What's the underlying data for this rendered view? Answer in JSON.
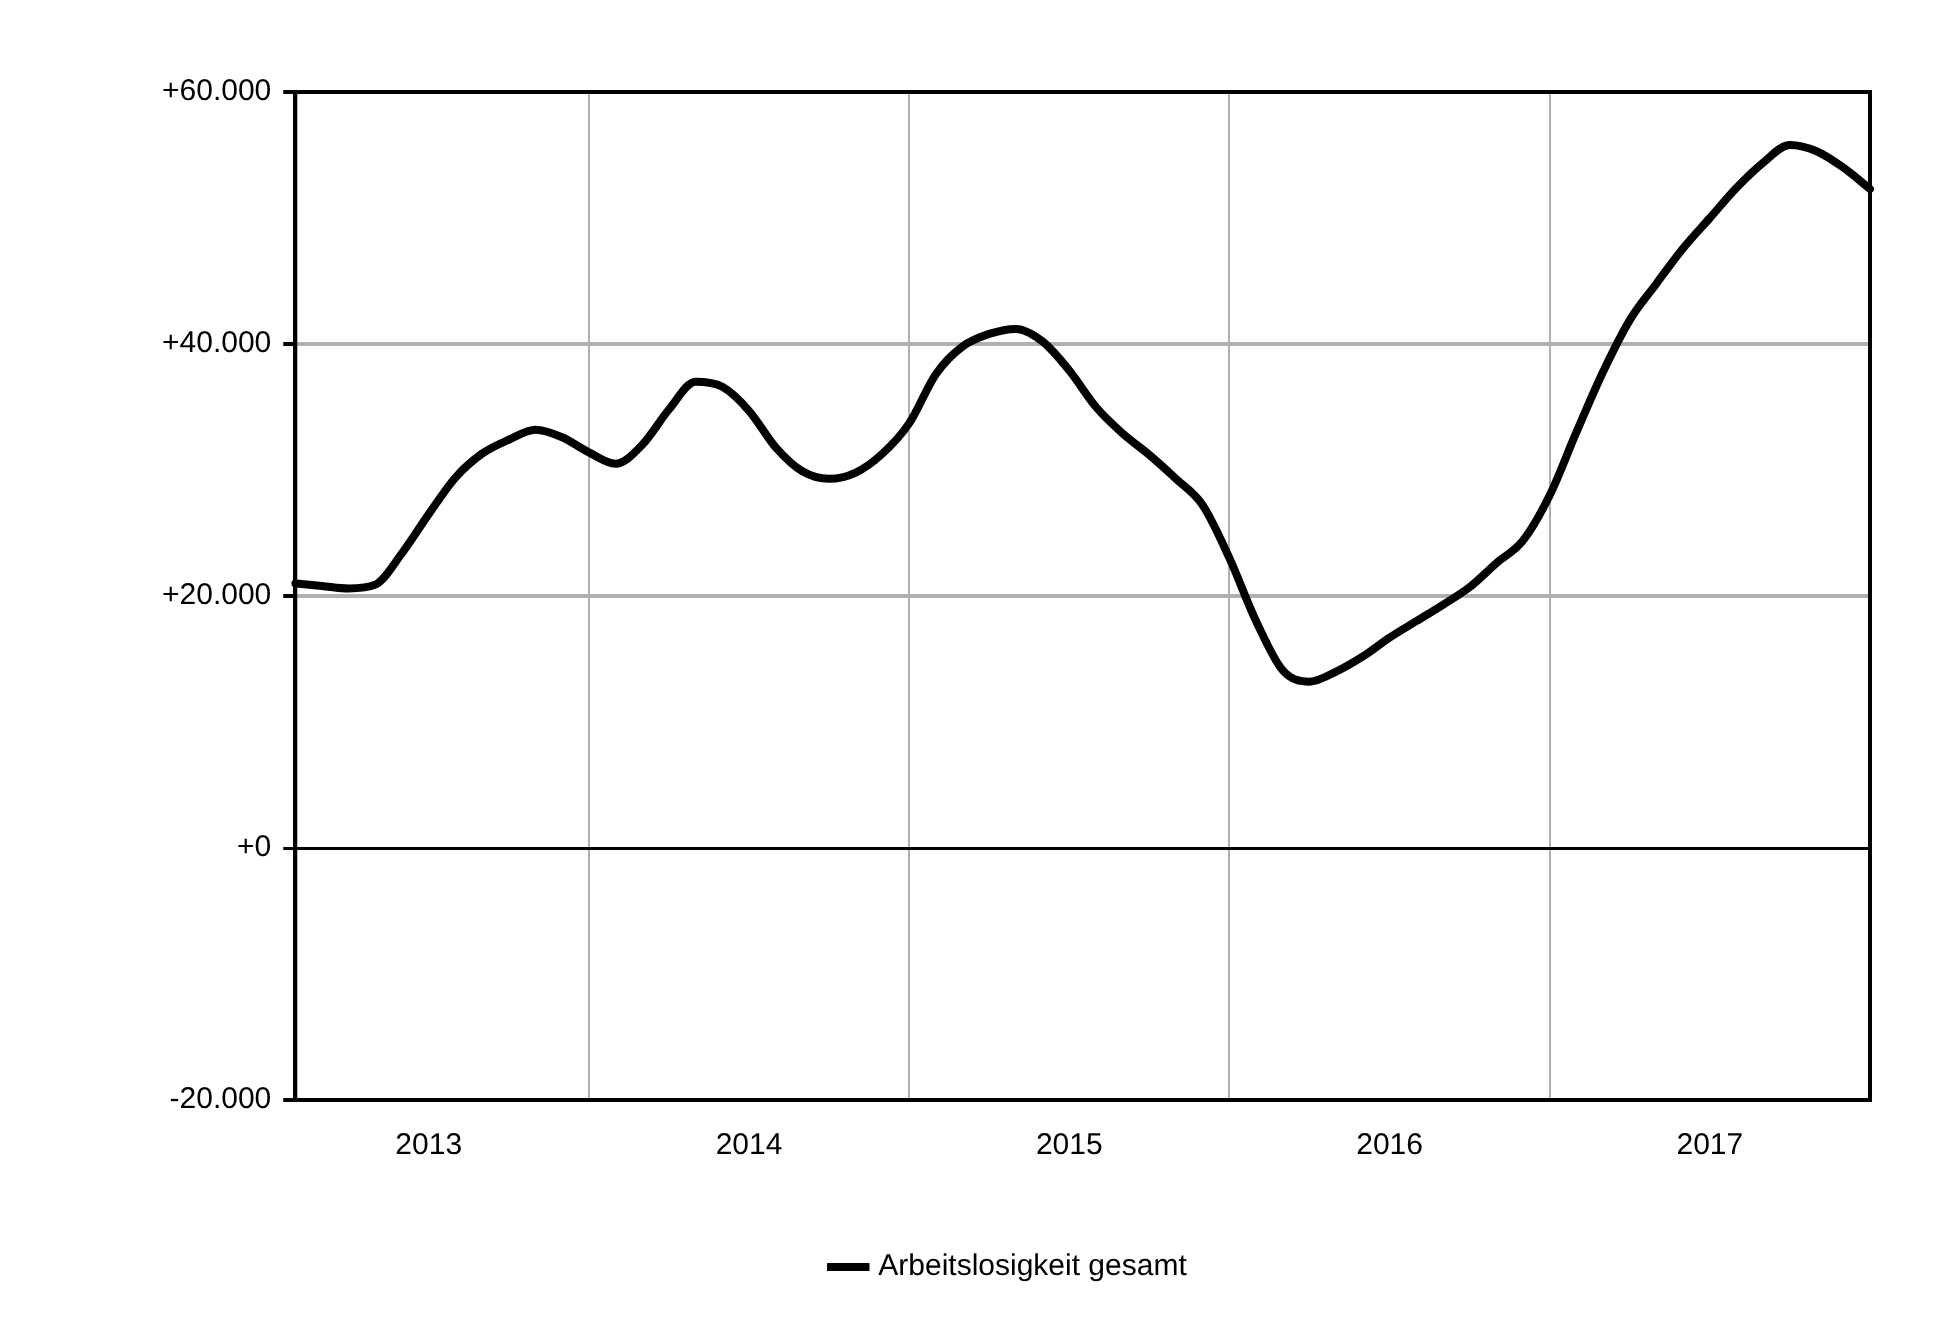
{
  "chart_data": {
    "type": "line",
    "categories": [
      null,
      null,
      null,
      null,
      null,
      "2013",
      null,
      null,
      null,
      null,
      null,
      null,
      null,
      null,
      null,
      null,
      null,
      "2014",
      null,
      null,
      null,
      null,
      null,
      null,
      null,
      null,
      null,
      null,
      null,
      "2015",
      null,
      null,
      null,
      null,
      null,
      null,
      null,
      null,
      null,
      null,
      null,
      "2016",
      null,
      null,
      null,
      null,
      null,
      null,
      null,
      null,
      null,
      null,
      null,
      "2017",
      null,
      null,
      null,
      null,
      null,
      null
    ],
    "series": [
      {
        "name": "Arbeitslosigkeit gesamt",
        "color": "#000000",
        "values": [
          21000,
          20800,
          20600,
          20900,
          23400,
          26500,
          29400,
          31300,
          32400,
          33200,
          32600,
          31400,
          30500,
          32000,
          34800,
          37000,
          36600,
          34700,
          31800,
          29900,
          29300,
          29800,
          31300,
          33700,
          37600,
          39800,
          40800,
          41200,
          40200,
          37900,
          35000,
          32900,
          31200,
          29300,
          27200,
          23000,
          18000,
          14100,
          13200,
          14000,
          15200,
          16700,
          18000,
          19300,
          20700,
          22600,
          24400,
          28000,
          33000,
          37800,
          41900,
          44800,
          47600,
          50000,
          52400,
          54400,
          55800,
          55300,
          54000,
          52300
        ]
      }
    ],
    "ylim": [
      -20000,
      60000
    ],
    "yticks": [
      {
        "value": -20000,
        "label": "-20.000"
      },
      {
        "value": 0,
        "label": "+0"
      },
      {
        "value": 20000,
        "label": "+20.000"
      },
      {
        "value": 40000,
        "label": "+40.000"
      },
      {
        "value": 60000,
        "label": "+60.000"
      }
    ],
    "grid": true,
    "legend": "bottom",
    "marker": "none",
    "line_style": "solid"
  }
}
